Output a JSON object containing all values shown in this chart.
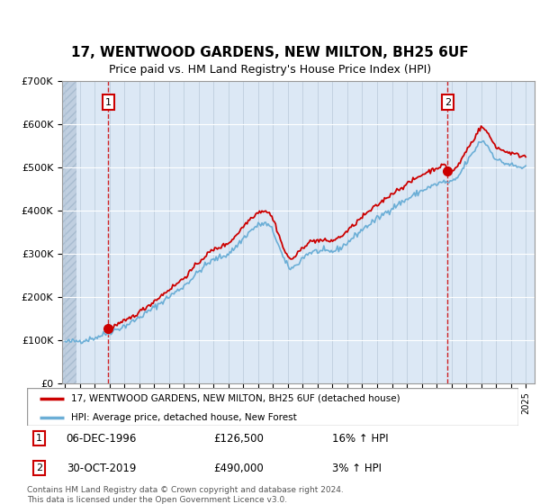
{
  "title": "17, WENTWOOD GARDENS, NEW MILTON, BH25 6UF",
  "subtitle": "Price paid vs. HM Land Registry's House Price Index (HPI)",
  "sale1_price": 126500,
  "sale2_price": 490000,
  "legend_line1": "17, WENTWOOD GARDENS, NEW MILTON, BH25 6UF (detached house)",
  "legend_line2": "HPI: Average price, detached house, New Forest",
  "footer": "Contains HM Land Registry data © Crown copyright and database right 2024.\nThis data is licensed under the Open Government Licence v3.0.",
  "hpi_color": "#6baed6",
  "price_color": "#cc0000",
  "ylim": [
    0,
    700000
  ],
  "yticks": [
    0,
    100000,
    200000,
    300000,
    400000,
    500000,
    600000,
    700000
  ]
}
